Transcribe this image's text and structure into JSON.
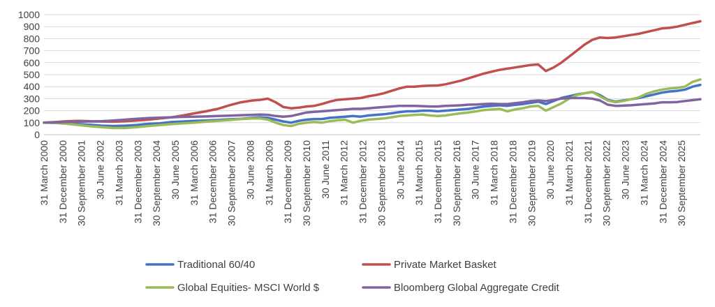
{
  "chart_data": {
    "type": "line",
    "title": "",
    "xlabel": "",
    "ylabel": "",
    "ylim": [
      0,
      1000
    ],
    "yticks": [
      0,
      100,
      200,
      300,
      400,
      500,
      600,
      700,
      800,
      900,
      1000
    ],
    "grid": true,
    "legend_position": "bottom",
    "x_tick_labels": [
      "31 March 2000",
      "31 December 2000",
      "30 September 2001",
      "30 June 2002",
      "31 March 2003",
      "31 December 2003",
      "30 September 2004",
      "30 June 2005",
      "31 March 2006",
      "31 December 2006",
      "30 September 2007",
      "30 June 2008",
      "31 March 2009",
      "31 December 2009",
      "30 September 2010",
      "30 June 2011",
      "31 March 2012",
      "31 December 2012",
      "30 September 2013",
      "30 June 2014",
      "31 March 2015",
      "31 December 2015",
      "30 September 2016",
      "30 June 2017",
      "31 March 2018",
      "31 December 2018",
      "30 September 2019",
      "30 June 2020",
      "31 March 2021",
      "31 December 2021",
      "30 September 2022",
      "30 June 2023",
      "31 March 2024",
      "31 December 2024",
      "30 September 2025"
    ],
    "x_period_count": 104,
    "series": [
      {
        "name": "Traditional 60/40",
        "color": "#4472c4",
        "points": [
          [
            0,
            100
          ],
          [
            3,
            100
          ],
          [
            6,
            95
          ],
          [
            9,
            88
          ],
          [
            12,
            82
          ],
          [
            15,
            75
          ],
          [
            18,
            72
          ],
          [
            21,
            75
          ],
          [
            24,
            80
          ],
          [
            27,
            90
          ],
          [
            30,
            95
          ],
          [
            33,
            105
          ],
          [
            36,
            110
          ],
          [
            39,
            115
          ],
          [
            42,
            118
          ],
          [
            45,
            122
          ],
          [
            48,
            128
          ],
          [
            51,
            132
          ],
          [
            54,
            140
          ],
          [
            56,
            145
          ],
          [
            58,
            140
          ],
          [
            60,
            125
          ],
          [
            62,
            110
          ],
          [
            64,
            100
          ],
          [
            66,
            115
          ],
          [
            68,
            125
          ],
          [
            70,
            130
          ],
          [
            72,
            130
          ],
          [
            74,
            140
          ],
          [
            76,
            145
          ],
          [
            78,
            150
          ],
          [
            80,
            155
          ],
          [
            82,
            150
          ],
          [
            84,
            160
          ],
          [
            86,
            165
          ],
          [
            88,
            170
          ],
          [
            90,
            178
          ],
          [
            92,
            188
          ],
          [
            94,
            195
          ],
          [
            96,
            195
          ],
          [
            98,
            200
          ],
          [
            100,
            200
          ],
          [
            102,
            195
          ],
          [
            104,
            200
          ],
          [
            106,
            205
          ],
          [
            108,
            210
          ],
          [
            110,
            215
          ],
          [
            112,
            225
          ],
          [
            114,
            235
          ],
          [
            116,
            240
          ],
          [
            118,
            245
          ],
          [
            120,
            240
          ],
          [
            122,
            248
          ],
          [
            124,
            255
          ],
          [
            126,
            265
          ],
          [
            128,
            275
          ],
          [
            130,
            255
          ],
          [
            132,
            280
          ],
          [
            134,
            305
          ],
          [
            136,
            320
          ],
          [
            138,
            335
          ],
          [
            140,
            345
          ],
          [
            142,
            355
          ],
          [
            144,
            330
          ],
          [
            146,
            290
          ],
          [
            148,
            275
          ],
          [
            150,
            285
          ],
          [
            152,
            295
          ],
          [
            154,
            305
          ],
          [
            156,
            320
          ],
          [
            158,
            335
          ],
          [
            160,
            350
          ],
          [
            162,
            360
          ],
          [
            164,
            365
          ],
          [
            166,
            375
          ],
          [
            168,
            400
          ],
          [
            170,
            415
          ]
        ]
      },
      {
        "name": "Private Market Basket",
        "color": "#c0504d",
        "points": [
          [
            0,
            100
          ],
          [
            3,
            105
          ],
          [
            6,
            112
          ],
          [
            9,
            115
          ],
          [
            12,
            112
          ],
          [
            15,
            110
          ],
          [
            18,
            108
          ],
          [
            21,
            112
          ],
          [
            24,
            118
          ],
          [
            27,
            125
          ],
          [
            30,
            135
          ],
          [
            33,
            145
          ],
          [
            36,
            160
          ],
          [
            39,
            178
          ],
          [
            42,
            195
          ],
          [
            45,
            215
          ],
          [
            48,
            245
          ],
          [
            51,
            270
          ],
          [
            54,
            285
          ],
          [
            56,
            290
          ],
          [
            58,
            300
          ],
          [
            60,
            270
          ],
          [
            62,
            230
          ],
          [
            64,
            220
          ],
          [
            66,
            225
          ],
          [
            68,
            235
          ],
          [
            70,
            240
          ],
          [
            72,
            255
          ],
          [
            74,
            275
          ],
          [
            76,
            290
          ],
          [
            78,
            295
          ],
          [
            80,
            300
          ],
          [
            82,
            305
          ],
          [
            84,
            320
          ],
          [
            86,
            330
          ],
          [
            88,
            345
          ],
          [
            90,
            365
          ],
          [
            92,
            385
          ],
          [
            94,
            400
          ],
          [
            96,
            400
          ],
          [
            98,
            405
          ],
          [
            100,
            408
          ],
          [
            102,
            410
          ],
          [
            104,
            420
          ],
          [
            106,
            435
          ],
          [
            108,
            450
          ],
          [
            110,
            470
          ],
          [
            112,
            490
          ],
          [
            114,
            510
          ],
          [
            116,
            525
          ],
          [
            118,
            540
          ],
          [
            120,
            550
          ],
          [
            122,
            560
          ],
          [
            124,
            570
          ],
          [
            126,
            580
          ],
          [
            128,
            585
          ],
          [
            130,
            530
          ],
          [
            132,
            560
          ],
          [
            134,
            600
          ],
          [
            136,
            650
          ],
          [
            138,
            700
          ],
          [
            140,
            750
          ],
          [
            142,
            790
          ],
          [
            144,
            810
          ],
          [
            146,
            805
          ],
          [
            148,
            810
          ],
          [
            150,
            820
          ],
          [
            152,
            830
          ],
          [
            154,
            840
          ],
          [
            156,
            855
          ],
          [
            158,
            870
          ],
          [
            160,
            885
          ],
          [
            162,
            890
          ],
          [
            164,
            900
          ],
          [
            166,
            915
          ],
          [
            168,
            930
          ],
          [
            170,
            945
          ]
        ]
      },
      {
        "name": "Global Equities- MSCI World $",
        "color": "#9bbb59",
        "points": [
          [
            0,
            100
          ],
          [
            3,
            97
          ],
          [
            6,
            90
          ],
          [
            9,
            80
          ],
          [
            12,
            70
          ],
          [
            15,
            62
          ],
          [
            18,
            55
          ],
          [
            21,
            55
          ],
          [
            24,
            62
          ],
          [
            27,
            72
          ],
          [
            30,
            80
          ],
          [
            33,
            88
          ],
          [
            36,
            95
          ],
          [
            39,
            100
          ],
          [
            42,
            108
          ],
          [
            45,
            115
          ],
          [
            48,
            122
          ],
          [
            51,
            130
          ],
          [
            54,
            135
          ],
          [
            56,
            135
          ],
          [
            58,
            125
          ],
          [
            60,
            100
          ],
          [
            62,
            80
          ],
          [
            64,
            72
          ],
          [
            66,
            90
          ],
          [
            68,
            100
          ],
          [
            70,
            105
          ],
          [
            72,
            100
          ],
          [
            74,
            112
          ],
          [
            76,
            120
          ],
          [
            78,
            125
          ],
          [
            80,
            100
          ],
          [
            82,
            115
          ],
          [
            84,
            125
          ],
          [
            86,
            130
          ],
          [
            88,
            135
          ],
          [
            90,
            145
          ],
          [
            92,
            155
          ],
          [
            94,
            160
          ],
          [
            96,
            165
          ],
          [
            98,
            168
          ],
          [
            100,
            160
          ],
          [
            102,
            155
          ],
          [
            104,
            160
          ],
          [
            106,
            170
          ],
          [
            108,
            178
          ],
          [
            110,
            185
          ],
          [
            112,
            195
          ],
          [
            114,
            205
          ],
          [
            116,
            210
          ],
          [
            118,
            215
          ],
          [
            120,
            195
          ],
          [
            122,
            210
          ],
          [
            124,
            220
          ],
          [
            126,
            235
          ],
          [
            128,
            240
          ],
          [
            130,
            200
          ],
          [
            132,
            230
          ],
          [
            134,
            260
          ],
          [
            136,
            300
          ],
          [
            138,
            330
          ],
          [
            140,
            345
          ],
          [
            142,
            355
          ],
          [
            144,
            320
          ],
          [
            146,
            285
          ],
          [
            148,
            270
          ],
          [
            150,
            280
          ],
          [
            152,
            295
          ],
          [
            154,
            310
          ],
          [
            156,
            340
          ],
          [
            158,
            360
          ],
          [
            160,
            375
          ],
          [
            162,
            385
          ],
          [
            164,
            390
          ],
          [
            166,
            400
          ],
          [
            168,
            440
          ],
          [
            170,
            460
          ]
        ]
      },
      {
        "name": "Bloomberg Global Aggregate Credit",
        "color": "#8064a2",
        "points": [
          [
            0,
            100
          ],
          [
            3,
            102
          ],
          [
            6,
            105
          ],
          [
            9,
            108
          ],
          [
            12,
            110
          ],
          [
            15,
            113
          ],
          [
            18,
            118
          ],
          [
            21,
            125
          ],
          [
            24,
            132
          ],
          [
            27,
            138
          ],
          [
            30,
            142
          ],
          [
            33,
            145
          ],
          [
            36,
            148
          ],
          [
            39,
            150
          ],
          [
            42,
            152
          ],
          [
            45,
            155
          ],
          [
            48,
            158
          ],
          [
            51,
            162
          ],
          [
            54,
            165
          ],
          [
            56,
            168
          ],
          [
            58,
            165
          ],
          [
            60,
            155
          ],
          [
            62,
            150
          ],
          [
            64,
            155
          ],
          [
            66,
            170
          ],
          [
            68,
            185
          ],
          [
            70,
            190
          ],
          [
            72,
            195
          ],
          [
            74,
            200
          ],
          [
            76,
            205
          ],
          [
            78,
            210
          ],
          [
            80,
            215
          ],
          [
            82,
            215
          ],
          [
            84,
            220
          ],
          [
            86,
            225
          ],
          [
            88,
            230
          ],
          [
            90,
            235
          ],
          [
            92,
            240
          ],
          [
            94,
            240
          ],
          [
            96,
            240
          ],
          [
            98,
            238
          ],
          [
            100,
            235
          ],
          [
            102,
            235
          ],
          [
            104,
            240
          ],
          [
            106,
            242
          ],
          [
            108,
            245
          ],
          [
            110,
            250
          ],
          [
            112,
            252
          ],
          [
            114,
            255
          ],
          [
            116,
            258
          ],
          [
            118,
            255
          ],
          [
            120,
            255
          ],
          [
            122,
            262
          ],
          [
            124,
            270
          ],
          [
            126,
            280
          ],
          [
            128,
            285
          ],
          [
            130,
            280
          ],
          [
            132,
            290
          ],
          [
            134,
            300
          ],
          [
            136,
            305
          ],
          [
            138,
            305
          ],
          [
            140,
            305
          ],
          [
            142,
            300
          ],
          [
            144,
            285
          ],
          [
            146,
            250
          ],
          [
            148,
            240
          ],
          [
            150,
            242
          ],
          [
            152,
            245
          ],
          [
            154,
            250
          ],
          [
            156,
            255
          ],
          [
            158,
            260
          ],
          [
            160,
            270
          ],
          [
            162,
            270
          ],
          [
            164,
            272
          ],
          [
            166,
            280
          ],
          [
            168,
            288
          ],
          [
            170,
            295
          ]
        ]
      }
    ]
  }
}
